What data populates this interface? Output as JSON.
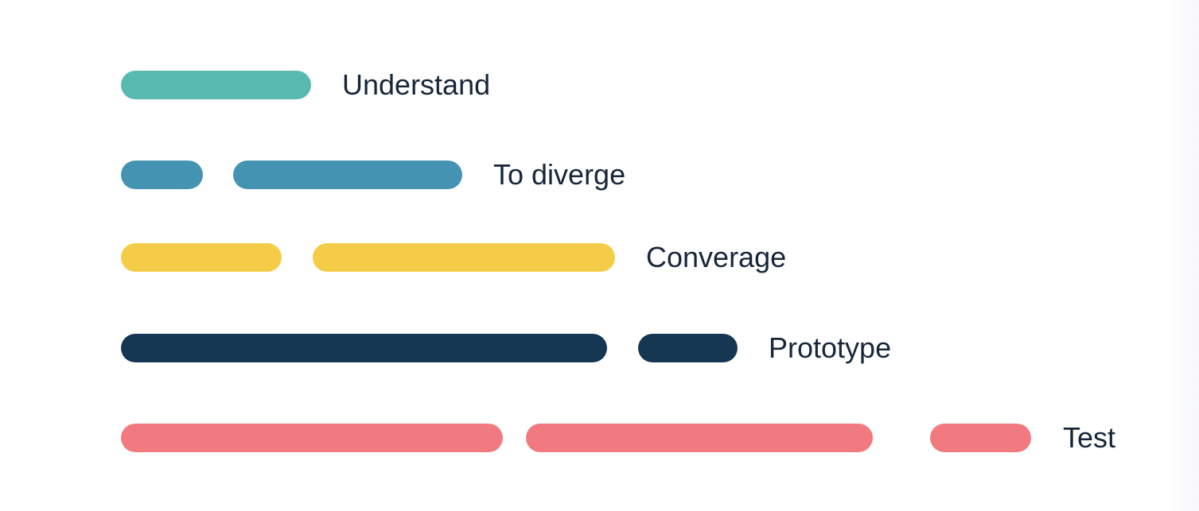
{
  "colors": {
    "understand": "#58b9b0",
    "diverge": "#4593b2",
    "converge": "#f5cc47",
    "prototype": "#163754",
    "test": "#f07a7f",
    "text": "#17263a"
  },
  "phases": [
    {
      "label": "Understand"
    },
    {
      "label": "To diverge"
    },
    {
      "label": "Converage"
    },
    {
      "label": "Prototype"
    },
    {
      "label": "Test"
    }
  ]
}
